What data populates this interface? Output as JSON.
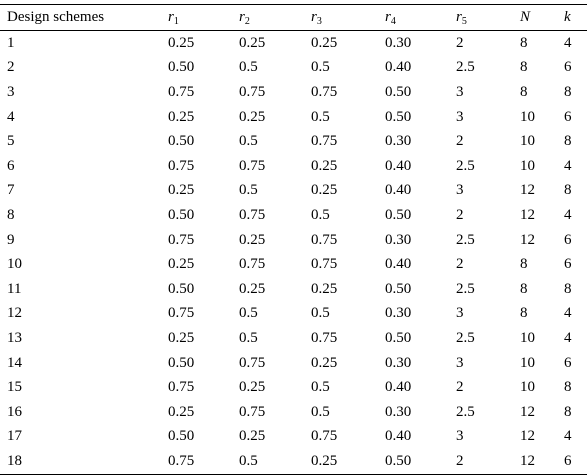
{
  "table": {
    "headers": [
      {
        "text": "Design schemes",
        "sub": ""
      },
      {
        "text": "r",
        "sub": "1"
      },
      {
        "text": "r",
        "sub": "2"
      },
      {
        "text": "r",
        "sub": "3"
      },
      {
        "text": "r",
        "sub": "4"
      },
      {
        "text": "r",
        "sub": "5"
      },
      {
        "text": "N",
        "sub": ""
      },
      {
        "text": "k",
        "sub": ""
      }
    ],
    "rows": [
      [
        "1",
        "0.25",
        "0.25",
        "0.25",
        "0.30",
        "2",
        "8",
        "4"
      ],
      [
        "2",
        "0.50",
        "0.5",
        "0.5",
        "0.40",
        "2.5",
        "8",
        "6"
      ],
      [
        "3",
        "0.75",
        "0.75",
        "0.75",
        "0.50",
        "3",
        "8",
        "8"
      ],
      [
        "4",
        "0.25",
        "0.25",
        "0.5",
        "0.50",
        "3",
        "10",
        "6"
      ],
      [
        "5",
        "0.50",
        "0.5",
        "0.75",
        "0.30",
        "2",
        "10",
        "8"
      ],
      [
        "6",
        "0.75",
        "0.75",
        "0.25",
        "0.40",
        "2.5",
        "10",
        "4"
      ],
      [
        "7",
        "0.25",
        "0.5",
        "0.25",
        "0.40",
        "3",
        "12",
        "8"
      ],
      [
        "8",
        "0.50",
        "0.75",
        "0.5",
        "0.50",
        "2",
        "12",
        "4"
      ],
      [
        "9",
        "0.75",
        "0.25",
        "0.75",
        "0.30",
        "2.5",
        "12",
        "6"
      ],
      [
        "10",
        "0.25",
        "0.75",
        "0.75",
        "0.40",
        "2",
        "8",
        "6"
      ],
      [
        "11",
        "0.50",
        "0.25",
        "0.25",
        "0.50",
        "2.5",
        "8",
        "8"
      ],
      [
        "12",
        "0.75",
        "0.5",
        "0.5",
        "0.30",
        "3",
        "8",
        "4"
      ],
      [
        "13",
        "0.25",
        "0.5",
        "0.75",
        "0.50",
        "2.5",
        "10",
        "4"
      ],
      [
        "14",
        "0.50",
        "0.75",
        "0.25",
        "0.30",
        "3",
        "10",
        "6"
      ],
      [
        "15",
        "0.75",
        "0.25",
        "0.5",
        "0.40",
        "2",
        "10",
        "8"
      ],
      [
        "16",
        "0.25",
        "0.75",
        "0.5",
        "0.30",
        "2.5",
        "12",
        "8"
      ],
      [
        "17",
        "0.50",
        "0.25",
        "0.75",
        "0.40",
        "3",
        "12",
        "4"
      ],
      [
        "18",
        "0.75",
        "0.5",
        "0.25",
        "0.50",
        "2",
        "12",
        "6"
      ]
    ]
  }
}
